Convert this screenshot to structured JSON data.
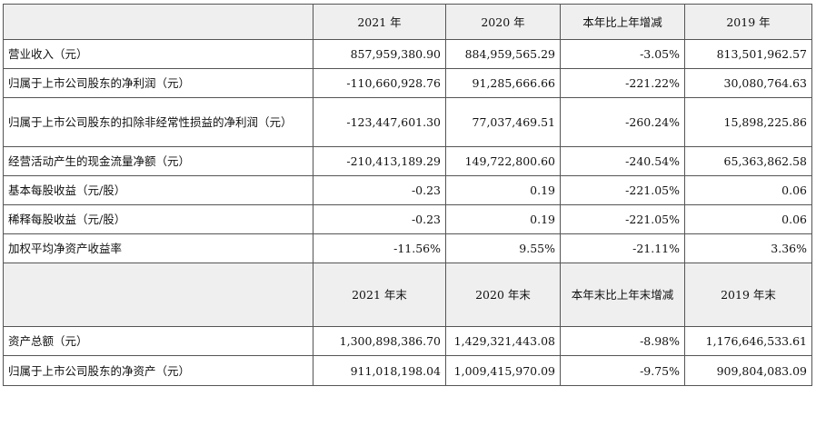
{
  "header1": [
    "",
    "2021 年",
    "2020 年",
    "本年比上年增减",
    "2019 年"
  ],
  "rows1": [
    {
      "label": "营业收入（元）",
      "y2021": "857,959,380.90",
      "y2020": "884,959,565.29",
      "change": "-3.05%",
      "y2019": "813,501,962.57"
    },
    {
      "label": "归属于上市公司股东的净利润（元）",
      "y2021": "-110,660,928.76",
      "y2020": "91,285,666.66",
      "change": "-221.22%",
      "y2019": "30,080,764.63"
    },
    {
      "label": "归属于上市公司股东的扣除非经常性损益的净利润（元）",
      "y2021": "-123,447,601.30",
      "y2020": "77,037,469.51",
      "change": "-260.24%",
      "y2019": "15,898,225.86"
    },
    {
      "label": "经营活动产生的现金流量净额（元）",
      "y2021": "-210,413,189.29",
      "y2020": "149,722,800.60",
      "change": "-240.54%",
      "y2019": "65,363,862.58"
    },
    {
      "label": "基本每股收益（元/股）",
      "y2021": "-0.23",
      "y2020": "0.19",
      "change": "-221.05%",
      "y2019": "0.06"
    },
    {
      "label": "稀释每股收益（元/股）",
      "y2021": "-0.23",
      "y2020": "0.19",
      "change": "-221.05%",
      "y2019": "0.06"
    },
    {
      "label": "加权平均净资产收益率",
      "y2021": "-11.56%",
      "y2020": "9.55%",
      "change": "-21.11%",
      "y2019": "3.36%"
    }
  ],
  "header2": [
    "",
    "2021 年末",
    "2020 年末",
    "本年末比上年末增减",
    "2019 年末"
  ],
  "rows2": [
    {
      "label": "资产总额（元）",
      "y2021": "1,300,898,386.70",
      "y2020": "1,429,321,443.08",
      "change": "-8.98%",
      "y2019": "1,176,646,533.61"
    },
    {
      "label": "归属于上市公司股东的净资产（元）",
      "y2021": "911,018,198.04",
      "y2020": "1,009,415,970.09",
      "change": "-9.75%",
      "y2019": "909,804,083.09"
    }
  ]
}
